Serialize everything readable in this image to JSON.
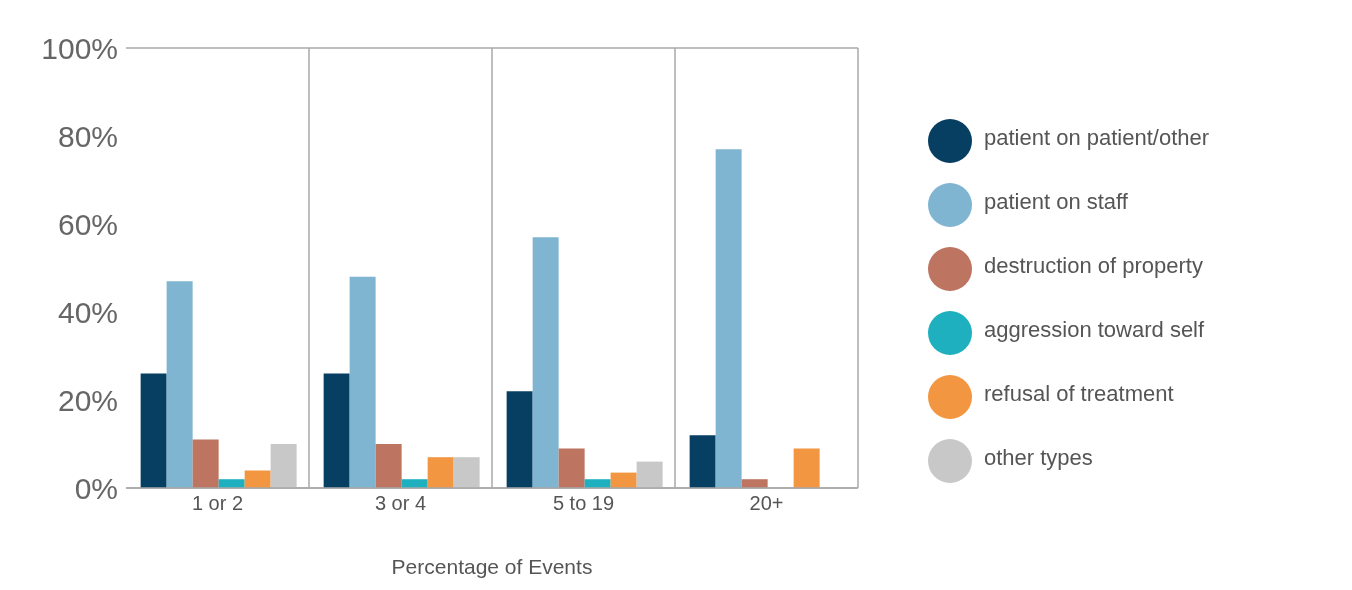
{
  "chart_data": {
    "type": "bar",
    "xlabel": "Percentage of Events",
    "categories": [
      "1 or 2",
      "3 or 4",
      "5 to 19",
      "20+"
    ],
    "series": [
      {
        "name": "patient on patient/other",
        "color": "#073f63",
        "values": [
          26,
          26,
          22,
          12
        ]
      },
      {
        "name": "patient on staff",
        "color": "#7fb5d1",
        "values": [
          47,
          48,
          57,
          77
        ]
      },
      {
        "name": "destruction of property",
        "color": "#bd7461",
        "values": [
          11,
          10,
          9,
          2
        ]
      },
      {
        "name": "aggression toward self",
        "color": "#1fb0bf",
        "values": [
          2,
          2,
          2,
          null
        ]
      },
      {
        "name": "refusal of treatment",
        "color": "#f29641",
        "values": [
          4,
          7,
          3.5,
          9
        ]
      },
      {
        "name": "other types",
        "color": "#c8c8c8",
        "values": [
          10,
          7,
          6,
          null
        ]
      }
    ],
    "ylim": [
      0,
      100
    ],
    "yticks": [
      {
        "value": 0,
        "label": "0%"
      },
      {
        "value": 20,
        "label": "20%"
      },
      {
        "value": 40,
        "label": "40%"
      },
      {
        "value": 60,
        "label": "60%"
      },
      {
        "value": 80,
        "label": "80%"
      },
      {
        "value": 100,
        "label": "100%"
      }
    ],
    "grid": true,
    "legend": "right"
  }
}
